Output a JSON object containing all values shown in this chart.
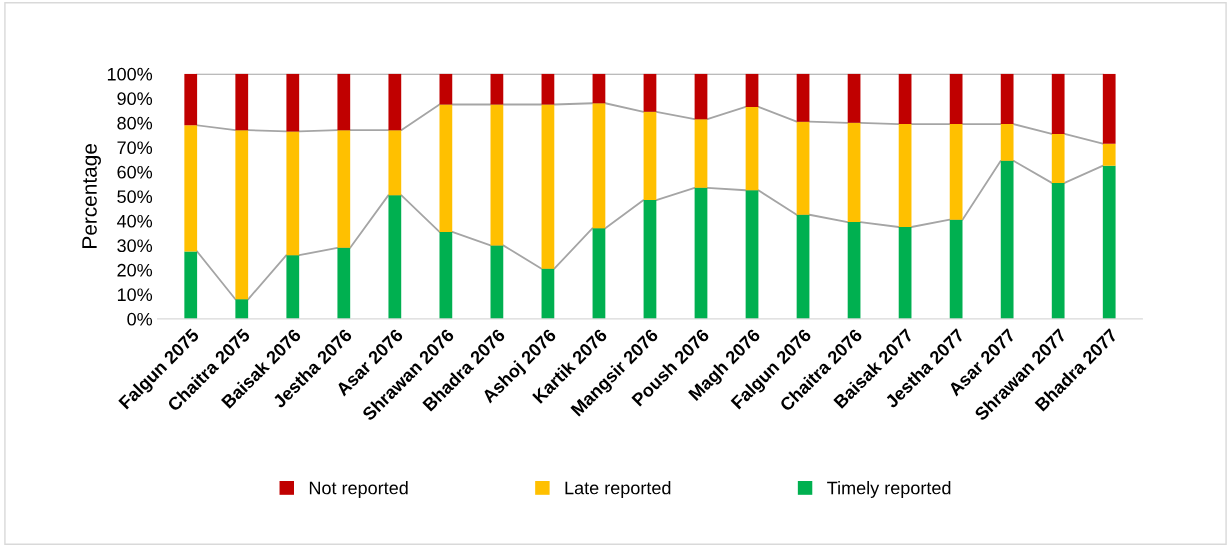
{
  "chart_data": {
    "type": "bar",
    "stacked": true,
    "ylabel": "Percentage",
    "categories": [
      "Falgun 2075",
      "Chaitra 2075",
      "Baisak 2076",
      "Jestha 2076",
      "Asar 2076",
      "Shrawan 2076",
      "Bhadra 2076",
      "Ashoj 2076",
      "Kartik 2076",
      "Mangsir 2076",
      "Poush 2076",
      "Magh 2076",
      "Falgun 2076",
      "Chaitra 2076",
      "Baisak 2077",
      "Jestha 2077",
      "Asar 2077",
      "Shrawan 2077",
      "Bhadra 2077"
    ],
    "series": [
      {
        "name": "Timely reported",
        "color": "#00b050",
        "values": [
          27.5,
          8,
          26,
          29,
          50.5,
          35.5,
          30,
          20.5,
          37,
          48.5,
          53.5,
          52.5,
          42.5,
          39.5,
          37.5,
          40.5,
          64.5,
          55.5,
          62.5
        ]
      },
      {
        "name": "Late reported",
        "color": "#ffc000",
        "values": [
          51.5,
          69,
          50.5,
          48,
          26.5,
          52,
          57.5,
          67,
          51,
          36,
          28,
          34,
          38,
          40.5,
          42,
          39,
          15,
          20,
          9
        ]
      },
      {
        "name": "Not reported",
        "color": "#c00000",
        "values": [
          21,
          23,
          23.5,
          23,
          23,
          12.5,
          12.5,
          12.5,
          12,
          15.5,
          18.5,
          13.5,
          19.5,
          20,
          20.5,
          20.5,
          20.5,
          24.5,
          28.5
        ]
      }
    ],
    "ylim": [
      0,
      100
    ],
    "yticks": [
      {
        "value": 0,
        "label": "0%"
      },
      {
        "value": 10,
        "label": "10%"
      },
      {
        "value": 20,
        "label": "20%"
      },
      {
        "value": 30,
        "label": "30%"
      },
      {
        "value": 40,
        "label": "40%"
      },
      {
        "value": 50,
        "label": "50%"
      },
      {
        "value": 60,
        "label": "60%"
      },
      {
        "value": 70,
        "label": "70%"
      },
      {
        "value": 80,
        "label": "80%"
      },
      {
        "value": 90,
        "label": "90%"
      },
      {
        "value": 100,
        "label": "100%"
      }
    ],
    "grid": false,
    "legend": "bottom"
  }
}
